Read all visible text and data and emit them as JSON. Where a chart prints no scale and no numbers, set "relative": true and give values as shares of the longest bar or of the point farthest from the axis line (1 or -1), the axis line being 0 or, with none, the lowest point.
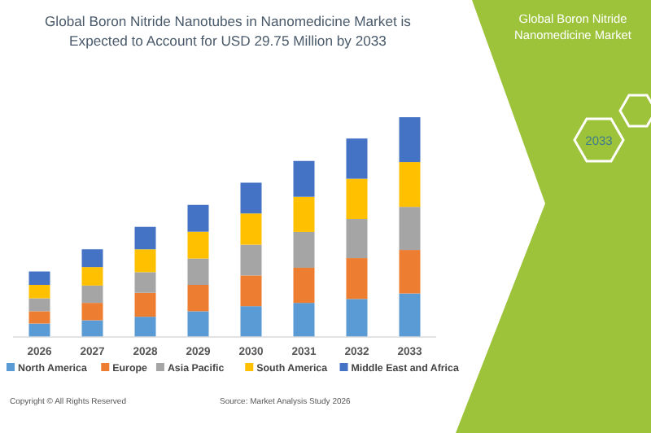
{
  "chart_data": {
    "type": "bar",
    "title": "Global Boron Nitride Nanotubes in Nanomedicine Market is Expected to Account for USD 29.75 Million by 2033",
    "relative": true,
    "stacked": true,
    "legend": "bottom",
    "categories": [
      "2026",
      "2027",
      "2028",
      "2029",
      "2030",
      "2031",
      "2032",
      "2033"
    ],
    "series": [
      {
        "name": "North America",
        "color": "#5b9bd5",
        "values": [
          0.061,
          0.076,
          0.092,
          0.117,
          0.14,
          0.155,
          0.173,
          0.198
        ]
      },
      {
        "name": "Europe",
        "color": "#ed7d31",
        "values": [
          0.056,
          0.079,
          0.109,
          0.12,
          0.14,
          0.16,
          0.186,
          0.198
        ]
      },
      {
        "name": "Asia Pacific",
        "color": "#a5a5a5",
        "values": [
          0.059,
          0.079,
          0.094,
          0.12,
          0.14,
          0.163,
          0.178,
          0.196
        ]
      },
      {
        "name": "South America",
        "color": "#ffc000",
        "values": [
          0.061,
          0.084,
          0.104,
          0.122,
          0.142,
          0.16,
          0.183,
          0.204
        ]
      },
      {
        "name": "Middle East and Africa",
        "color": "#4472c4",
        "values": [
          0.061,
          0.081,
          0.102,
          0.122,
          0.14,
          0.163,
          0.183,
          0.204
        ]
      }
    ],
    "annotations": [
      "Copyright © All Rights Reserved",
      "Source: Market Analysis Study 2026",
      "Global Boron Nitride Nanomedicine Market",
      "2033"
    ]
  }
}
